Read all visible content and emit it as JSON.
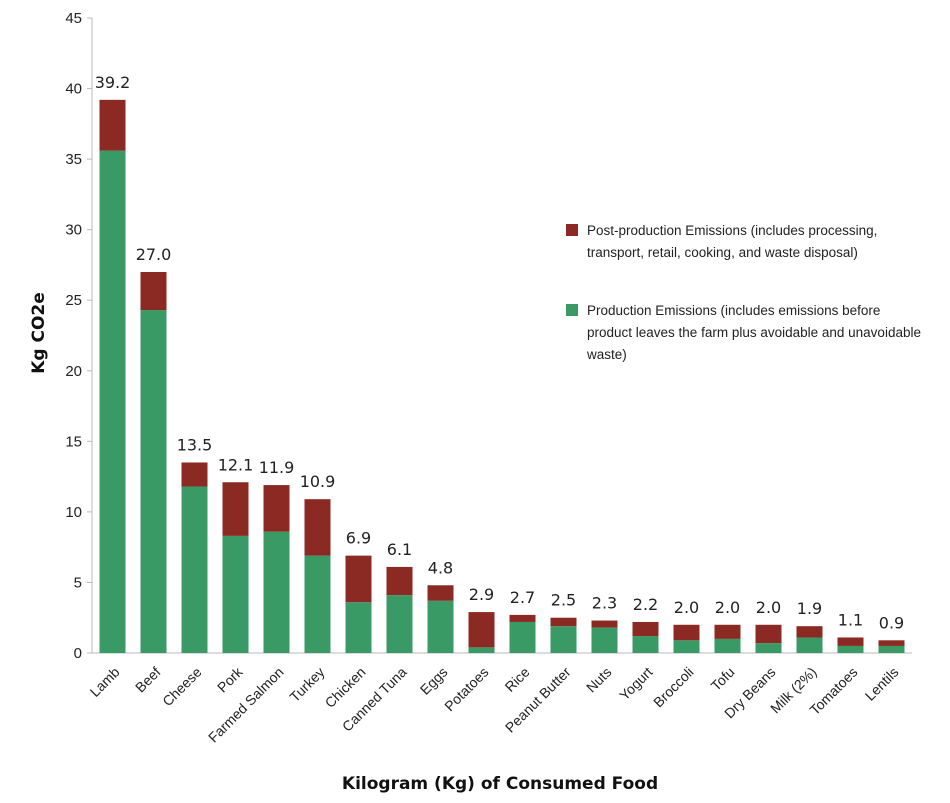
{
  "chart_data": {
    "type": "bar",
    "stacked": true,
    "categories": [
      "Lamb",
      "Beef",
      "Cheese",
      "Pork",
      "Farmed Salmon",
      "Turkey",
      "Chicken",
      "Canned Tuna",
      "Eggs",
      "Potatoes",
      "Rice",
      "Peanut Butter",
      "Nuts",
      "Yogurt",
      "Broccoli",
      "Tofu",
      "Dry Beans",
      "Milk (2%)",
      "Tomatoes",
      "Lentils"
    ],
    "totals": [
      "39.2",
      "27.0",
      "13.5",
      "12.1",
      "11.9",
      "10.9",
      "6.9",
      "6.1",
      "4.8",
      "2.9",
      "2.7",
      "2.5",
      "2.3",
      "2.2",
      "2.0",
      "2.0",
      "2.0",
      "1.9",
      "1.1",
      "0.9"
    ],
    "series": [
      {
        "name": "Production Emissions (includes emissions before product leaves the farm plus avoidable and unavoidable waste)",
        "color": "#3a9a66",
        "values": [
          35.6,
          24.3,
          11.8,
          8.3,
          8.6,
          6.9,
          3.6,
          4.1,
          3.7,
          0.4,
          2.2,
          1.9,
          1.8,
          1.2,
          0.9,
          1.0,
          0.7,
          1.1,
          0.5,
          0.5
        ]
      },
      {
        "name": "Post-production Emissions (includes processing, transport, retail, cooking, and waste disposal)",
        "color": "#8b2a22",
        "values": [
          3.6,
          2.7,
          1.7,
          3.8,
          3.3,
          4.0,
          3.3,
          2.0,
          1.1,
          2.5,
          0.5,
          0.6,
          0.5,
          1.0,
          1.1,
          1.0,
          1.3,
          0.8,
          0.6,
          0.4
        ]
      }
    ],
    "ylabel": "Kg CO2e",
    "xlabel": "Kilogram (Kg) of Consumed Food",
    "ylim": [
      0,
      45
    ],
    "yticks": [
      0,
      5,
      10,
      15,
      20,
      25,
      30,
      35,
      40,
      45
    ],
    "grid": false,
    "legend_position": "right"
  }
}
